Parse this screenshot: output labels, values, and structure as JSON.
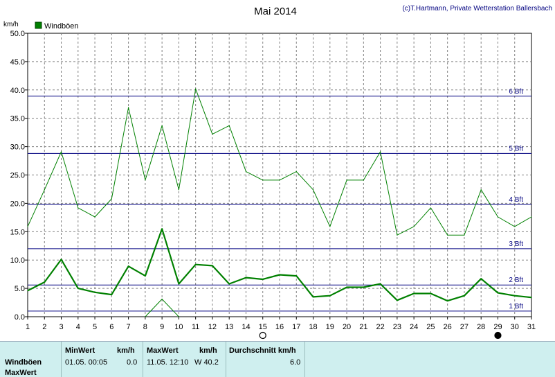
{
  "header": {
    "title": "Mai 2014",
    "copyright": "(c)T.Hartmann, Private Wetterstation Ballersbach"
  },
  "chart_data": {
    "type": "line",
    "title": "Mai 2014",
    "ylabel": "km/h",
    "ylim": [
      0,
      50
    ],
    "xlim": [
      1,
      31
    ],
    "yticks": [
      "0.0",
      "5.0",
      "10.0",
      "15.0",
      "20.0",
      "25.0",
      "30.0",
      "35.0",
      "40.0",
      "45.0",
      "50.0"
    ],
    "x": [
      1,
      2,
      3,
      4,
      5,
      6,
      7,
      8,
      9,
      10,
      11,
      12,
      13,
      14,
      15,
      16,
      17,
      18,
      19,
      20,
      21,
      22,
      23,
      24,
      25,
      26,
      27,
      28,
      29,
      30,
      31
    ],
    "legend": "Windböen",
    "legend_position": "top-left",
    "grid": true,
    "series": [
      {
        "name": "Windböen",
        "color": "#008000",
        "style": "max",
        "values": [
          15.9,
          22.4,
          29.1,
          19.2,
          17.6,
          20.8,
          36.9,
          24.1,
          33.7,
          22.4,
          40.2,
          32.2,
          33.7,
          25.6,
          24.1,
          24.1,
          25.6,
          22.4,
          15.9,
          24.1,
          24.1,
          29.1,
          14.4,
          15.9,
          19.2,
          14.4,
          14.4,
          22.4,
          17.6,
          15.9,
          17.6
        ]
      },
      {
        "name": "",
        "color": "#008000",
        "style": "avg",
        "values": [
          4.6,
          6.1,
          10.1,
          5.0,
          4.3,
          3.9,
          8.9,
          7.2,
          15.5,
          5.8,
          9.2,
          9.0,
          5.8,
          6.9,
          6.6,
          7.4,
          7.2,
          3.5,
          3.7,
          5.2,
          5.2,
          5.8,
          2.9,
          4.1,
          4.1,
          2.8,
          3.7,
          6.7,
          4.2,
          3.7,
          3.4
        ]
      },
      {
        "name": "",
        "color": "#008000",
        "style": "min",
        "values": [
          null,
          null,
          null,
          null,
          null,
          null,
          null,
          0.0,
          3.1,
          0.0,
          null,
          null,
          null,
          null,
          null,
          null,
          null,
          null,
          null,
          null,
          null,
          null,
          null,
          null,
          null,
          null,
          null,
          null,
          null,
          null,
          null
        ]
      }
    ],
    "beaufort_lines": [
      {
        "label": "1 Bft",
        "value": 1.0
      },
      {
        "label": "2 Bft",
        "value": 5.6
      },
      {
        "label": "3 Bft",
        "value": 12.0
      },
      {
        "label": "4 Bft",
        "value": 19.8
      },
      {
        "label": "5 Bft",
        "value": 28.8
      },
      {
        "label": "6 Bft",
        "value": 38.9
      }
    ],
    "moon_phases": [
      {
        "day": 15,
        "type": "full-moon"
      },
      {
        "day": 29,
        "type": "new-moon"
      }
    ],
    "colors": {
      "series": "#008000",
      "beaufort": "#000080",
      "grid": "#808080"
    }
  },
  "footer": {
    "row_label_1": "Windböen",
    "row_label_2": "MaxWert",
    "min_header": "MinWert",
    "min_unit": "km/h",
    "min_time": "01.05.  00:05",
    "min_value": "0.0",
    "max_header": "MaxWert",
    "max_unit": "km/h",
    "max_time": "11.05.  12:10",
    "max_value": "W 40.2",
    "avg_header": "Durchschnitt km/h",
    "avg_value": "6.0"
  }
}
